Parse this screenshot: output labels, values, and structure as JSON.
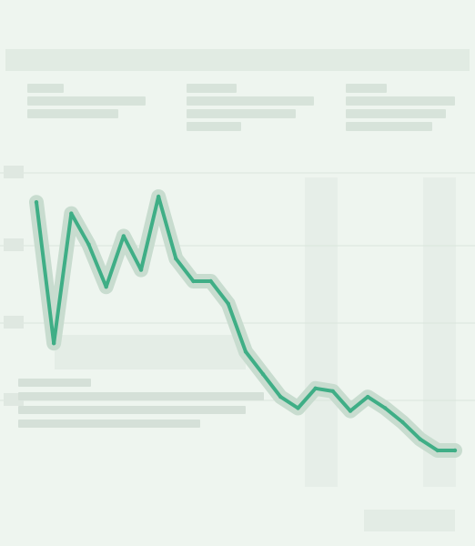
{
  "chart_data": {
    "type": "line",
    "title": "",
    "series": [
      {
        "name": "",
        "color": "#3fae86",
        "x": [
          0,
          1,
          2,
          3,
          4,
          5,
          6,
          7,
          8,
          9,
          10,
          11,
          12,
          13,
          14,
          15,
          16,
          17,
          18,
          19,
          20,
          21,
          22,
          23,
          24
        ],
        "values": [
          88,
          38,
          84,
          73,
          58,
          76,
          64,
          90,
          68,
          60,
          60,
          52,
          35,
          27,
          19,
          15,
          22,
          21,
          14,
          19,
          15,
          10,
          4,
          0,
          0
        ]
      }
    ],
    "ylim": [
      0,
      100
    ],
    "grid": true,
    "legend": "none"
  },
  "colors": {
    "line": "#3fae86",
    "band": "#c8dccf"
  }
}
